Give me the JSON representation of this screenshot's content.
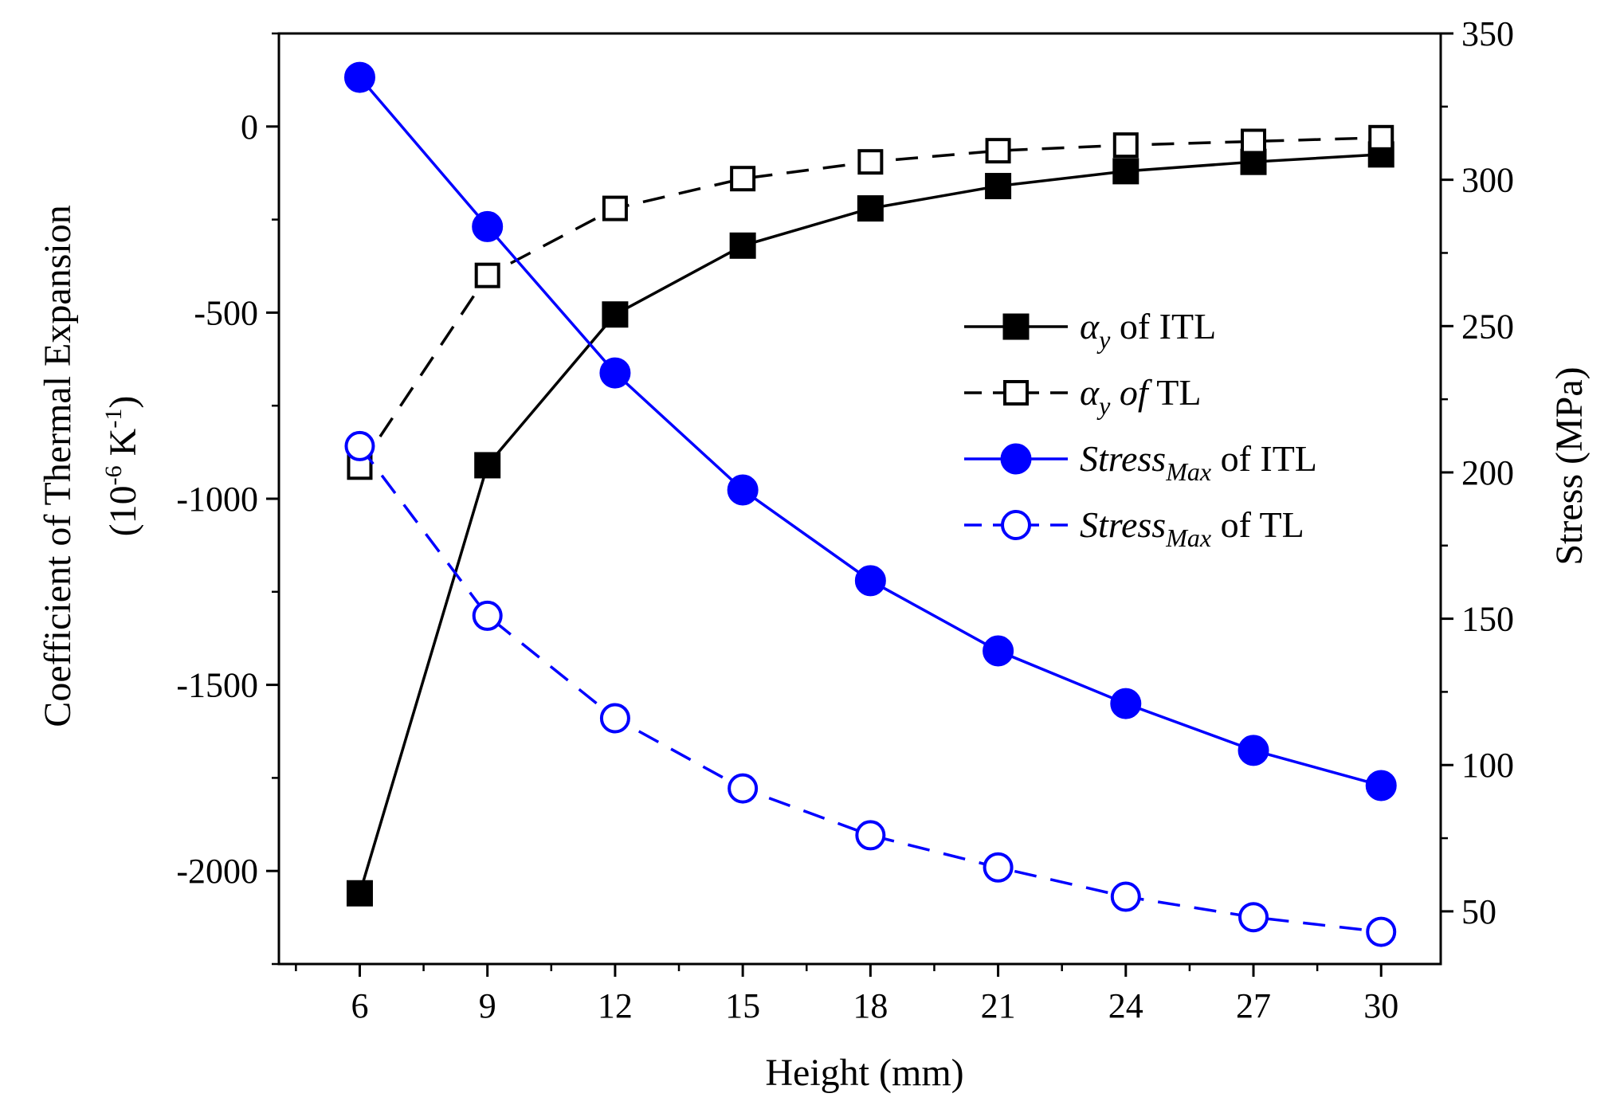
{
  "chart_data": {
    "type": "line",
    "xlabel": "Height (mm)",
    "x": [
      6,
      9,
      12,
      15,
      18,
      21,
      24,
      27,
      30
    ],
    "xlim": [
      4.1,
      31.4
    ],
    "xticks": [
      6,
      9,
      12,
      15,
      18,
      21,
      24,
      27,
      30
    ],
    "y_left": {
      "label_line1": "Coefficient of Thermal Expansion",
      "label_line2_base": "(10",
      "label_line2_exp": "-6",
      "label_line2_mid": " K",
      "label_line2_exp2": "-1",
      "label_line2_end": ")",
      "ylim": [
        -2250,
        250
      ],
      "ticks": [
        0,
        -500,
        -1000,
        -1500,
        -2000
      ],
      "tick_labels": [
        "0",
        "-500",
        "-1000",
        "-1500",
        "-2000"
      ]
    },
    "y_right": {
      "label": "Stress (MPa)",
      "ylim": [
        32,
        350
      ],
      "ticks": [
        50,
        100,
        150,
        200,
        250,
        300,
        350
      ],
      "tick_labels": [
        "50",
        "100",
        "150",
        "200",
        "250",
        "300",
        "350"
      ]
    },
    "series": [
      {
        "name": "αy of ITL",
        "legend_parts": [
          "α",
          "y",
          " of ITL"
        ],
        "axis": "left",
        "values": [
          -2060,
          -910,
          -505,
          -320,
          -220,
          -160,
          -120,
          -95,
          -75
        ],
        "color": "#000000",
        "line": "solid",
        "marker": "filled-square"
      },
      {
        "name": "αy of TL",
        "legend_parts": [
          "α",
          "y",
          " of",
          " TL"
        ],
        "axis": "left",
        "values": [
          -915,
          -400,
          -220,
          -140,
          -95,
          -65,
          -50,
          -40,
          -30
        ],
        "color": "#000000",
        "line": "dashed",
        "marker": "open-square"
      },
      {
        "name": "StressMax of ITL",
        "legend_parts": [
          "Stress",
          "Max",
          " of ITL"
        ],
        "axis": "right",
        "values": [
          335,
          284,
          234,
          194,
          163,
          139,
          121,
          105,
          93
        ],
        "color": "#0000ff",
        "line": "solid",
        "marker": "filled-circle"
      },
      {
        "name": "StressMax of TL",
        "legend_parts": [
          "Stress",
          "Max",
          " of TL"
        ],
        "axis": "right",
        "values": [
          209,
          151,
          116,
          92,
          76,
          65,
          55,
          48,
          43
        ],
        "color": "#0000ff",
        "line": "dashed",
        "marker": "open-circle"
      }
    ],
    "legend_position": "right-center",
    "grid": false
  }
}
